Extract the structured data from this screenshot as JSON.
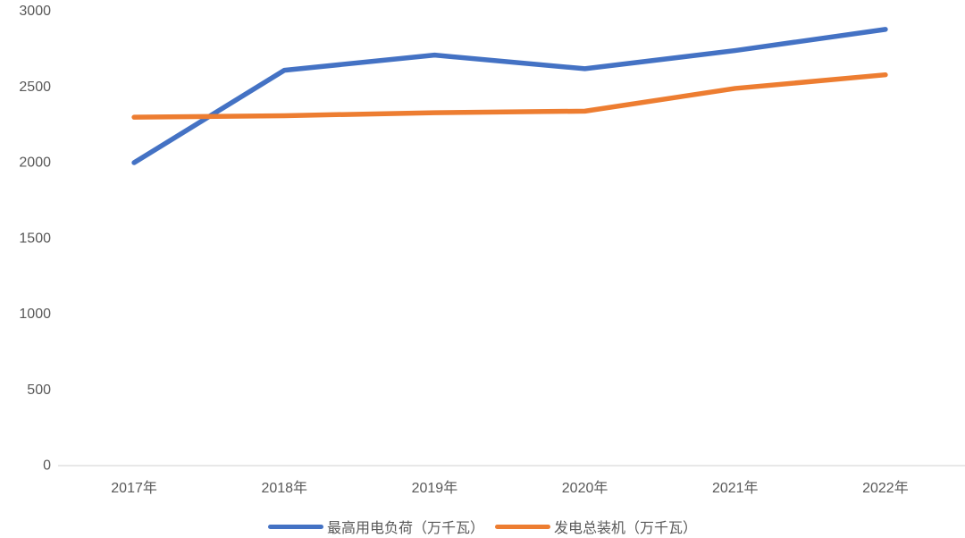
{
  "chart_data": {
    "type": "line",
    "title": "",
    "xlabel": "",
    "ylabel": "",
    "categories": [
      "2017年",
      "2018年",
      "2019年",
      "2020年",
      "2021年",
      "2022年"
    ],
    "series": [
      {
        "name": "最高用电负荷（万千瓦）",
        "color": "#4472C4",
        "values": [
          2000,
          2610,
          2710,
          2620,
          2740,
          2880
        ]
      },
      {
        "name": "发电总装机（万千瓦）",
        "color": "#ED7D31",
        "values": [
          2300,
          2310,
          2330,
          2340,
          2490,
          2580
        ]
      }
    ],
    "ylim": [
      0,
      3000
    ],
    "yticks": [
      0,
      500,
      1000,
      1500,
      2000,
      2500,
      3000
    ],
    "grid": false,
    "legend_position": "bottom",
    "axis_color": "#D9D9D9",
    "tick_label_color": "#595959",
    "background_color": "#FFFFFF"
  }
}
